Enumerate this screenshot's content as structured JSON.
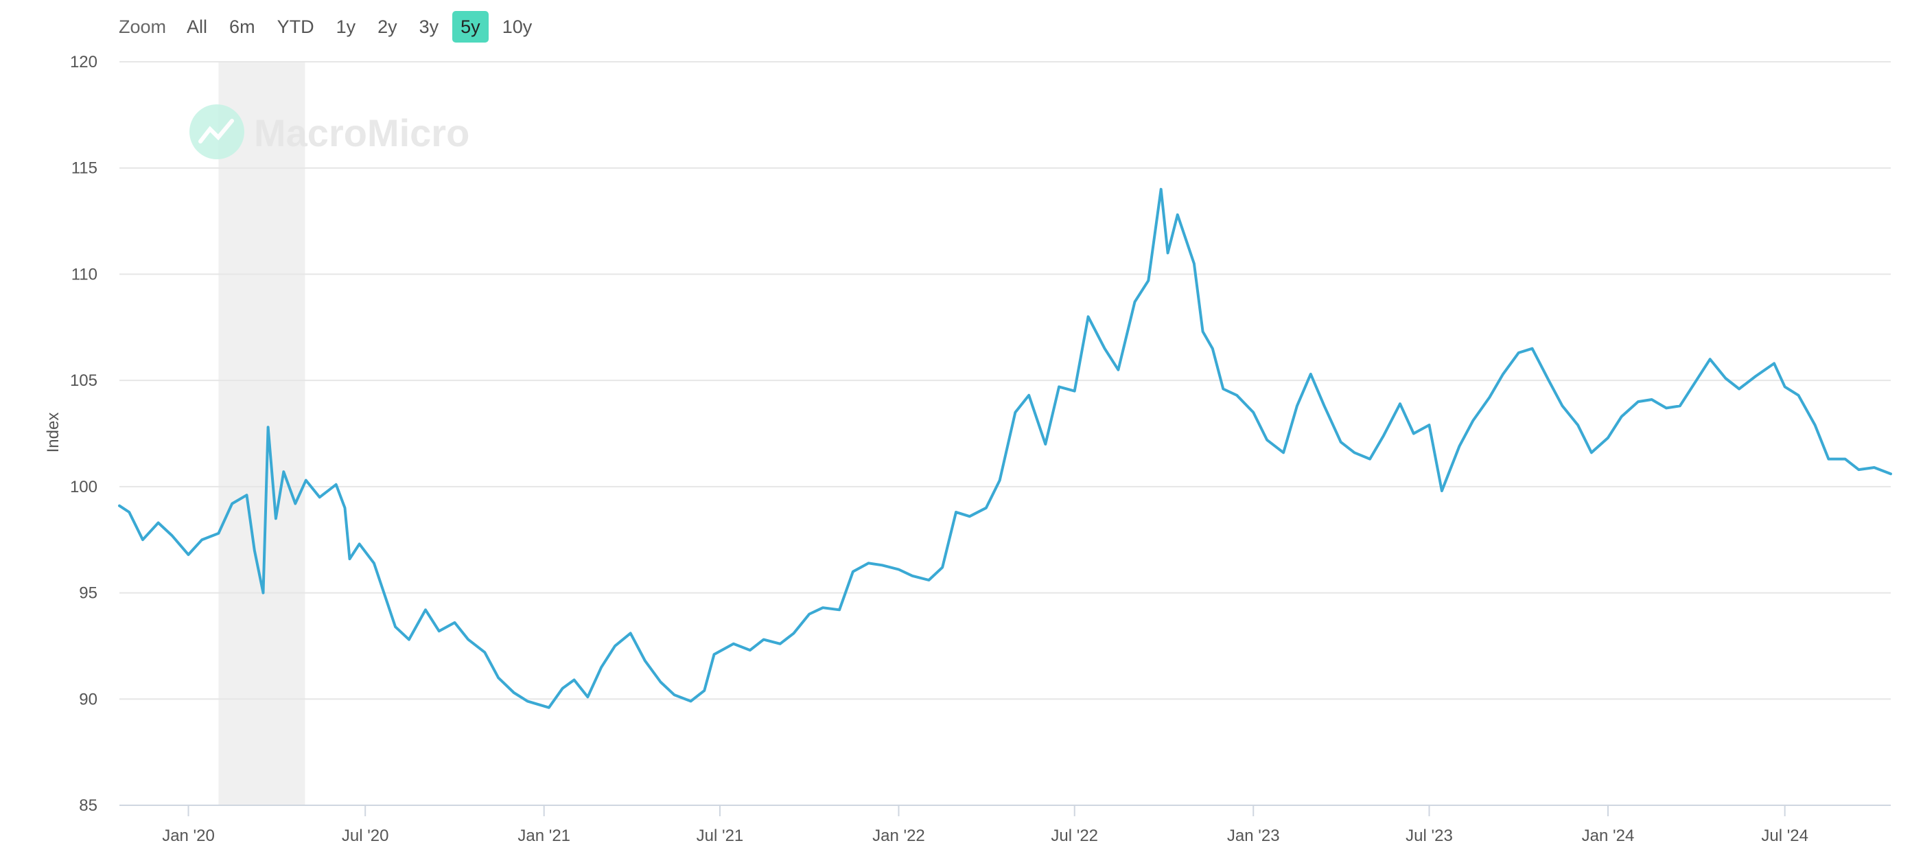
{
  "toolbar": {
    "zoom_label": "Zoom",
    "buttons": [
      {
        "label": "All",
        "active": false
      },
      {
        "label": "6m",
        "active": false
      },
      {
        "label": "YTD",
        "active": false
      },
      {
        "label": "1y",
        "active": false
      },
      {
        "label": "2y",
        "active": false
      },
      {
        "label": "3y",
        "active": false
      },
      {
        "label": "5y",
        "active": true
      },
      {
        "label": "10y",
        "active": false
      }
    ]
  },
  "watermark": {
    "text": "MacroMicro"
  },
  "colors": {
    "line": "#3aa9d4",
    "grid": "#e6e6e6",
    "recession_band": "#f0f0f0",
    "active_button": "#4fd9bd"
  },
  "chart_data": {
    "type": "line",
    "title": "",
    "xlabel": "",
    "ylabel": "Index",
    "ylim": [
      85,
      120
    ],
    "yticks": [
      85,
      90,
      95,
      100,
      105,
      110,
      115,
      120
    ],
    "xlim": [
      "2019-10-22",
      "2024-10-18"
    ],
    "xticks": [
      {
        "date": "2020-01-01",
        "label": "Jan '20"
      },
      {
        "date": "2020-07-01",
        "label": "Jul '20"
      },
      {
        "date": "2021-01-01",
        "label": "Jan '21"
      },
      {
        "date": "2021-07-01",
        "label": "Jul '21"
      },
      {
        "date": "2022-01-01",
        "label": "Jan '22"
      },
      {
        "date": "2022-07-01",
        "label": "Jul '22"
      },
      {
        "date": "2023-01-01",
        "label": "Jan '23"
      },
      {
        "date": "2023-07-01",
        "label": "Jul '23"
      },
      {
        "date": "2024-01-01",
        "label": "Jan '24"
      },
      {
        "date": "2024-07-01",
        "label": "Jul '24"
      }
    ],
    "grid": true,
    "shaded_ranges": [
      {
        "from": "2020-02-01",
        "to": "2020-04-30"
      }
    ],
    "series": [
      {
        "name": "",
        "points": [
          [
            "2019-10-22",
            99.1
          ],
          [
            "2019-11-01",
            98.8
          ],
          [
            "2019-11-15",
            97.5
          ],
          [
            "2019-12-01",
            98.3
          ],
          [
            "2019-12-15",
            97.7
          ],
          [
            "2020-01-01",
            96.8
          ],
          [
            "2020-01-15",
            97.5
          ],
          [
            "2020-02-01",
            97.8
          ],
          [
            "2020-02-15",
            99.2
          ],
          [
            "2020-03-01",
            99.6
          ],
          [
            "2020-03-09",
            97.0
          ],
          [
            "2020-03-18",
            95.0
          ],
          [
            "2020-03-23",
            102.8
          ],
          [
            "2020-03-31",
            98.5
          ],
          [
            "2020-04-08",
            100.7
          ],
          [
            "2020-04-20",
            99.2
          ],
          [
            "2020-05-01",
            100.3
          ],
          [
            "2020-05-15",
            99.5
          ],
          [
            "2020-06-01",
            100.1
          ],
          [
            "2020-06-10",
            99.0
          ],
          [
            "2020-06-15",
            96.6
          ],
          [
            "2020-06-25",
            97.3
          ],
          [
            "2020-07-10",
            96.4
          ],
          [
            "2020-08-01",
            93.4
          ],
          [
            "2020-08-15",
            92.8
          ],
          [
            "2020-09-01",
            94.2
          ],
          [
            "2020-09-15",
            93.2
          ],
          [
            "2020-10-01",
            93.6
          ],
          [
            "2020-10-15",
            92.8
          ],
          [
            "2020-11-01",
            92.2
          ],
          [
            "2020-11-15",
            91.0
          ],
          [
            "2020-12-01",
            90.3
          ],
          [
            "2020-12-15",
            89.9
          ],
          [
            "2021-01-06",
            89.6
          ],
          [
            "2021-01-20",
            90.5
          ],
          [
            "2021-02-01",
            90.9
          ],
          [
            "2021-02-15",
            90.1
          ],
          [
            "2021-03-01",
            91.5
          ],
          [
            "2021-03-15",
            92.5
          ],
          [
            "2021-03-31",
            93.1
          ],
          [
            "2021-04-15",
            91.8
          ],
          [
            "2021-05-01",
            90.8
          ],
          [
            "2021-05-15",
            90.2
          ],
          [
            "2021-06-01",
            89.9
          ],
          [
            "2021-06-15",
            90.4
          ],
          [
            "2021-06-25",
            92.1
          ],
          [
            "2021-07-15",
            92.6
          ],
          [
            "2021-08-01",
            92.3
          ],
          [
            "2021-08-15",
            92.8
          ],
          [
            "2021-09-01",
            92.6
          ],
          [
            "2021-09-15",
            93.1
          ],
          [
            "2021-10-01",
            94.0
          ],
          [
            "2021-10-15",
            94.3
          ],
          [
            "2021-11-01",
            94.2
          ],
          [
            "2021-11-15",
            96.0
          ],
          [
            "2021-12-01",
            96.4
          ],
          [
            "2021-12-15",
            96.3
          ],
          [
            "2022-01-01",
            96.1
          ],
          [
            "2022-01-15",
            95.8
          ],
          [
            "2022-02-01",
            95.6
          ],
          [
            "2022-02-15",
            96.2
          ],
          [
            "2022-03-01",
            98.8
          ],
          [
            "2022-03-15",
            98.6
          ],
          [
            "2022-04-01",
            99.0
          ],
          [
            "2022-04-15",
            100.3
          ],
          [
            "2022-05-01",
            103.5
          ],
          [
            "2022-05-15",
            104.3
          ],
          [
            "2022-06-01",
            102.0
          ],
          [
            "2022-06-15",
            104.7
          ],
          [
            "2022-07-01",
            104.5
          ],
          [
            "2022-07-15",
            108.0
          ],
          [
            "2022-08-01",
            106.5
          ],
          [
            "2022-08-15",
            105.5
          ],
          [
            "2022-09-01",
            108.7
          ],
          [
            "2022-09-15",
            109.7
          ],
          [
            "2022-09-28",
            114.0
          ],
          [
            "2022-10-05",
            111.0
          ],
          [
            "2022-10-15",
            112.8
          ],
          [
            "2022-11-01",
            110.5
          ],
          [
            "2022-11-10",
            107.3
          ],
          [
            "2022-11-20",
            106.5
          ],
          [
            "2022-12-01",
            104.6
          ],
          [
            "2022-12-15",
            104.3
          ],
          [
            "2023-01-01",
            103.5
          ],
          [
            "2023-01-15",
            102.2
          ],
          [
            "2023-02-01",
            101.6
          ],
          [
            "2023-02-15",
            103.8
          ],
          [
            "2023-03-01",
            105.3
          ],
          [
            "2023-03-15",
            103.8
          ],
          [
            "2023-04-01",
            102.1
          ],
          [
            "2023-04-15",
            101.6
          ],
          [
            "2023-05-01",
            101.3
          ],
          [
            "2023-05-15",
            102.4
          ],
          [
            "2023-06-01",
            103.9
          ],
          [
            "2023-06-15",
            102.5
          ],
          [
            "2023-07-01",
            102.9
          ],
          [
            "2023-07-14",
            99.8
          ],
          [
            "2023-08-01",
            101.9
          ],
          [
            "2023-08-15",
            103.1
          ],
          [
            "2023-09-01",
            104.2
          ],
          [
            "2023-09-15",
            105.3
          ],
          [
            "2023-10-01",
            106.3
          ],
          [
            "2023-10-15",
            106.5
          ],
          [
            "2023-11-01",
            105.0
          ],
          [
            "2023-11-15",
            103.8
          ],
          [
            "2023-12-01",
            102.9
          ],
          [
            "2023-12-15",
            101.6
          ],
          [
            "2024-01-01",
            102.3
          ],
          [
            "2024-01-15",
            103.3
          ],
          [
            "2024-02-01",
            104.0
          ],
          [
            "2024-02-15",
            104.1
          ],
          [
            "2024-03-01",
            103.7
          ],
          [
            "2024-03-15",
            103.8
          ],
          [
            "2024-04-01",
            105.0
          ],
          [
            "2024-04-15",
            106.0
          ],
          [
            "2024-05-01",
            105.1
          ],
          [
            "2024-05-15",
            104.6
          ],
          [
            "2024-06-01",
            105.2
          ],
          [
            "2024-06-20",
            105.8
          ],
          [
            "2024-07-01",
            104.7
          ],
          [
            "2024-07-15",
            104.3
          ],
          [
            "2024-08-01",
            102.9
          ],
          [
            "2024-08-15",
            101.3
          ],
          [
            "2024-09-01",
            101.3
          ],
          [
            "2024-09-15",
            100.8
          ],
          [
            "2024-10-01",
            100.9
          ],
          [
            "2024-10-18",
            100.6
          ]
        ]
      }
    ]
  }
}
